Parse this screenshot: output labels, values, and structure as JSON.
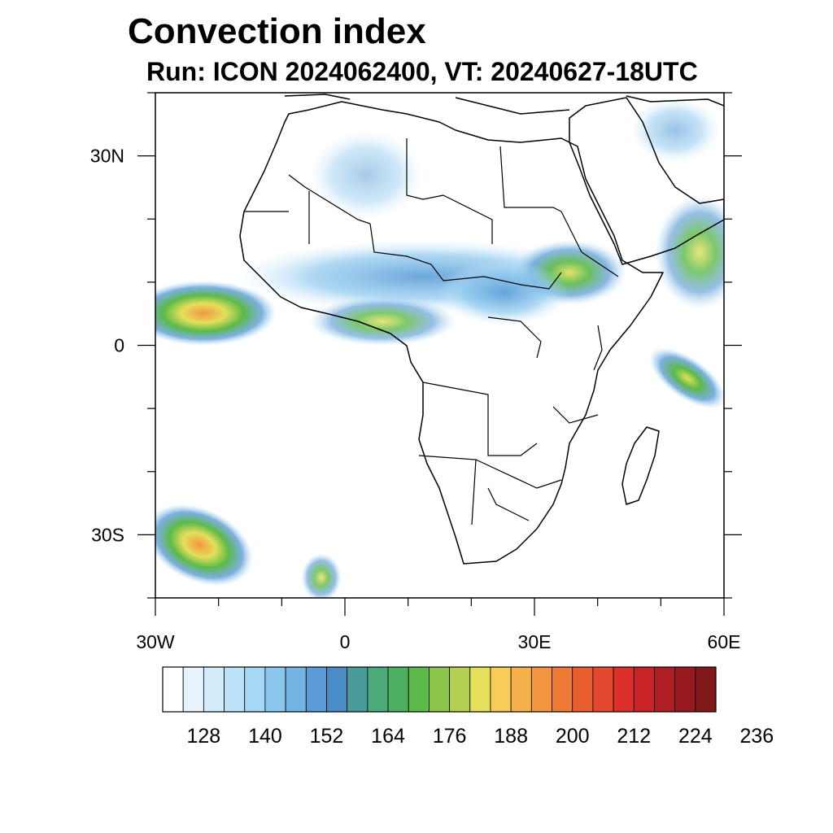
{
  "title": "Convection index",
  "subtitle": "Run: ICON 2024062400,  VT: 20240627-18UTC",
  "map": {
    "lon_range": [
      -30,
      60
    ],
    "lat_range": [
      -40,
      40
    ],
    "x_ticks": [
      {
        "lon": -30,
        "label": "30W"
      },
      {
        "lon": 0,
        "label": "0"
      },
      {
        "lon": 30,
        "label": "30E"
      },
      {
        "lon": 60,
        "label": "60E"
      }
    ],
    "y_ticks": [
      {
        "lat": 30,
        "label": "30N"
      },
      {
        "lat": 0,
        "label": "0"
      },
      {
        "lat": -30,
        "label": "30S"
      }
    ]
  },
  "colorbar": {
    "colors": [
      "#ffffff",
      "#e8f4fc",
      "#d2ecf9",
      "#bce3f7",
      "#a4d8f4",
      "#8cc8ee",
      "#74b4e4",
      "#5c9cd6",
      "#4a8cc6",
      "#4a9a9a",
      "#4aaa7a",
      "#4cb060",
      "#5cba48",
      "#8cc44c",
      "#b4d050",
      "#e4e05a",
      "#f8cc58",
      "#f6b04c",
      "#f49640",
      "#ee7a36",
      "#e86030",
      "#e4482e",
      "#dc302c",
      "#c82428",
      "#b01e24",
      "#981a20",
      "#801818"
    ],
    "labels": [
      "128",
      "140",
      "152",
      "164",
      "176",
      "188",
      "200",
      "212",
      "224",
      "236"
    ]
  }
}
